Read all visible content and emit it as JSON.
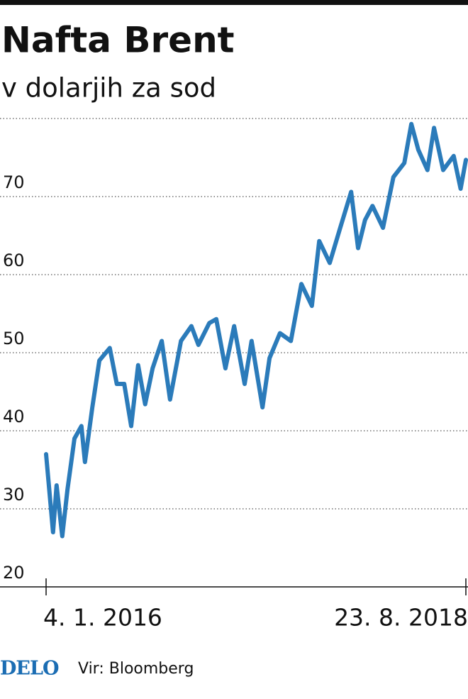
{
  "chart_data": {
    "type": "line",
    "title": "Nafta Brent",
    "subtitle": "v dolarjih za sod",
    "x": [
      "2016-01-04",
      "2016-01-20",
      "2016-01-28",
      "2016-02-10",
      "2016-02-22",
      "2016-03-09",
      "2016-03-25",
      "2016-04-02",
      "2016-04-19",
      "2016-05-05",
      "2016-05-29",
      "2016-06-14",
      "2016-07-01",
      "2016-07-17",
      "2016-08-02",
      "2016-08-18",
      "2016-09-04",
      "2016-09-25",
      "2016-10-14",
      "2016-11-08",
      "2016-12-02",
      "2016-12-18",
      "2017-01-12",
      "2017-01-28",
      "2017-02-18",
      "2017-03-10",
      "2017-04-03",
      "2017-04-19",
      "2017-05-14",
      "2017-05-30",
      "2017-06-23",
      "2017-07-18",
      "2017-08-11",
      "2017-09-04",
      "2017-09-21",
      "2017-10-15",
      "2017-11-08",
      "2017-12-03",
      "2017-12-19",
      "2018-01-04",
      "2018-01-21",
      "2018-02-14",
      "2018-03-10",
      "2018-04-04",
      "2018-04-20",
      "2018-05-06",
      "2018-05-27",
      "2018-06-11",
      "2018-07-02",
      "2018-07-26",
      "2018-08-11",
      "2018-08-23"
    ],
    "series": [
      {
        "color": "#2b7bba",
        "values": [
          37,
          27,
          33,
          26.5,
          32.5,
          39,
          40.6,
          36,
          43,
          49,
          50.6,
          46,
          46,
          40.6,
          48.4,
          43.4,
          48,
          51.5,
          44,
          51.5,
          53.4,
          51,
          53.8,
          54.3,
          48,
          53.4,
          46,
          51.5,
          43,
          49.3,
          52.5,
          51.5,
          58.8,
          56,
          64.3,
          61.5,
          66,
          70.6,
          63.4,
          67,
          68.8,
          66,
          72.5,
          74.3,
          79.3,
          76,
          73.4,
          78.8,
          73.4,
          75.2,
          71,
          74.7
        ]
      }
    ],
    "xlim": [
      "2016-01-04",
      "2018-08-23"
    ],
    "xticks": [
      {
        "value": "2016-01-04",
        "label": "4. 1. 2016"
      },
      {
        "value": "2018-08-23",
        "label": "23. 8. 2018"
      }
    ],
    "ylim": [
      20,
      80
    ],
    "yticks": [
      20,
      30,
      40,
      50,
      60,
      70
    ],
    "grid": true,
    "logo": "DELO",
    "source": "Vir: Bloomberg"
  }
}
